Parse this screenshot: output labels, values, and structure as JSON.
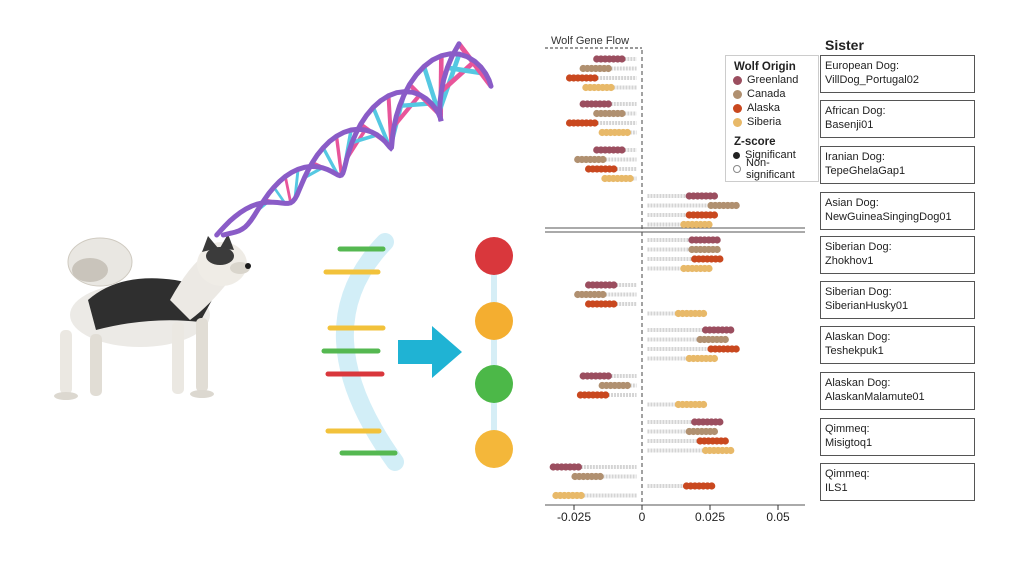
{
  "chart_data": {
    "type": "scatter",
    "title": "Wolf Gene Flow",
    "xlim": [
      -0.04,
      0.06
    ],
    "xticks": [
      -0.025,
      0,
      0.025,
      0.05
    ],
    "xtick_labels": [
      "-0.025",
      "0",
      "0.025",
      "0.05"
    ],
    "legend": {
      "title": "Wolf Origin",
      "entries": [
        {
          "name": "Greenland",
          "color": "#9b4e5f"
        },
        {
          "name": "Canada",
          "color": "#b09070"
        },
        {
          "name": "Alaska",
          "color": "#c9481f"
        },
        {
          "name": "Siberia",
          "color": "#e8b969"
        }
      ],
      "zscore_title": "Z-score",
      "zscore_entries": [
        "Significant",
        "Non-significant"
      ]
    },
    "sister_header": "Sister",
    "groups": [
      {
        "label1": "European Dog:",
        "label2": "VillDog_Portugal02",
        "values": {
          "Greenland": -0.012,
          "Canada": -0.017,
          "Alaska": -0.022,
          "Siberia": -0.016
        }
      },
      {
        "label1": "African Dog:",
        "label2": "Basenji01",
        "values": {
          "Greenland": -0.017,
          "Canada": -0.012,
          "Alaska": -0.022,
          "Siberia": -0.01
        }
      },
      {
        "label1": "Iranian Dog:",
        "label2": "TepeGhelaGap1",
        "values": {
          "Greenland": -0.012,
          "Canada": -0.019,
          "Alaska": -0.015,
          "Siberia": -0.009
        }
      },
      {
        "label1": "Asian Dog:",
        "label2": "NewGuineaSingingDog01",
        "values": {
          "Greenland": 0.022,
          "Canada": 0.03,
          "Alaska": 0.022,
          "Siberia": 0.02
        }
      },
      {
        "label1": "Siberian Dog:",
        "label2": "Zhokhov1",
        "values": {
          "Greenland": 0.023,
          "Canada": 0.023,
          "Alaska": 0.024,
          "Siberia": 0.02
        }
      },
      {
        "label1": "Siberian Dog:",
        "label2": "SiberianHusky01",
        "values": {
          "Greenland": -0.015,
          "Canada": -0.019,
          "Alaska": -0.015,
          "Siberia": 0.018
        }
      },
      {
        "label1": "Alaskan Dog:",
        "label2": "Teshekpuk1",
        "values": {
          "Greenland": 0.028,
          "Canada": 0.026,
          "Alaska": 0.03,
          "Siberia": 0.022
        }
      },
      {
        "label1": "Alaskan Dog:",
        "label2": "AlaskanMalamute01",
        "values": {
          "Greenland": -0.017,
          "Canada": -0.01,
          "Alaska": -0.018,
          "Siberia": 0.018
        }
      },
      {
        "label1": "Qimmeq:",
        "label2": "Misigtoq1",
        "values": {
          "Greenland": 0.024,
          "Canada": 0.022,
          "Alaska": 0.026,
          "Siberia": 0.028
        }
      },
      {
        "label1": "Qimmeq:",
        "label2": "ILS1",
        "values": {
          "Greenland": -0.028,
          "Canada": -0.02,
          "Alaska": 0.021,
          "Siberia": -0.027
        }
      }
    ]
  },
  "illustration": {
    "subjects": [
      "dog-photo",
      "dna-helix",
      "gene-strand",
      "allele-markers"
    ],
    "colors": {
      "helix": "#8a5cc7",
      "rung_pink": "#e8559a",
      "rung_cyan": "#55c8e2",
      "arrow": "#1fb3d4",
      "red": "#d9373c",
      "orange": "#f4ae30",
      "green": "#4cb848",
      "yellow": "#f2c23b"
    }
  }
}
